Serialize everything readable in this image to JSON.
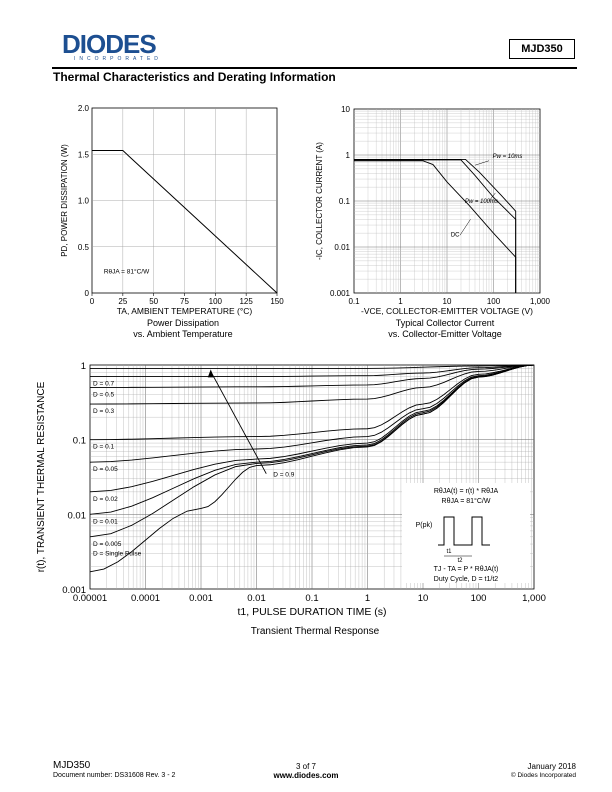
{
  "header": {
    "logo_text": "DIODES",
    "logo_subtext": "INCORPORATED",
    "part_number": "MJD350",
    "section_title": "Thermal Characteristics and Derating Information"
  },
  "colors": {
    "logo_blue": "#1d4f91",
    "ink": "#000000",
    "grid": "#888888"
  },
  "chart_data": [
    {
      "type": "line",
      "title": "Power Dissipation vs. Ambient Temperature",
      "caption_lines": [
        "Power Dissipation",
        "vs. Ambient Temperature"
      ],
      "xlabel": "TA, AMBIENT TEMPERATURE (°C)",
      "ylabel": "PD, POWER DISSIPATION (W)",
      "xlim": [
        0,
        150
      ],
      "ylim": [
        0,
        2.0
      ],
      "x_ticks": [
        0,
        25,
        50,
        75,
        100,
        125,
        150
      ],
      "x_tick_labels": [
        "0",
        "25",
        "50",
        "75",
        "100",
        "125",
        "150"
      ],
      "y_ticks": [
        0,
        0.5,
        1.0,
        1.5,
        2.0
      ],
      "y_tick_labels": [
        "0",
        "0.5",
        "1.0",
        "1.5",
        "2.0"
      ],
      "series": [
        {
          "name": "PD",
          "x": [
            0,
            25,
            150
          ],
          "y": [
            1.54,
            1.54,
            0
          ]
        }
      ],
      "annotation": "RθJA = 81°C/W"
    },
    {
      "type": "line",
      "title": "Typical Collector Current vs. Collector-Emitter Voltage",
      "caption_lines": [
        "Typical Collector Current",
        "vs. Collector-Emitter Voltage"
      ],
      "xlabel": "-VCE, COLLECTOR-EMITTER VOLTAGE (V)",
      "ylabel": "-IC, COLLECTOR CURRENT (A)",
      "xscale": "log",
      "yscale": "log",
      "xlim": [
        0.1,
        1000
      ],
      "ylim": [
        0.001,
        10
      ],
      "x_ticks": [
        0.1,
        1,
        10,
        100,
        1000
      ],
      "x_tick_labels": [
        "0.1",
        "1",
        "10",
        "100",
        "1,000"
      ],
      "y_ticks": [
        0.001,
        0.01,
        0.1,
        1,
        10
      ],
      "y_tick_labels": [
        "0.001",
        "0.01",
        "0.1",
        "1",
        "10"
      ],
      "series": [
        {
          "name": "DC",
          "x": [
            0.1,
            3,
            5,
            10,
            30,
            100,
            300,
            300
          ],
          "y": [
            0.75,
            0.75,
            0.62,
            0.26,
            0.08,
            0.02,
            0.006,
            0.001
          ]
        },
        {
          "name": "Pw = 100ms",
          "x": [
            0.1,
            20,
            40,
            100,
            300,
            300
          ],
          "y": [
            0.78,
            0.78,
            0.36,
            0.12,
            0.04,
            0.001
          ]
        },
        {
          "name": "Pw = 10ms",
          "x": [
            0.1,
            25,
            50,
            150,
            300,
            300
          ],
          "y": [
            0.8,
            0.8,
            0.42,
            0.13,
            0.06,
            0.001
          ]
        }
      ],
      "legend_labels": {
        "pw10": "Pw = 10ms",
        "pw100": "Pw = 100ms",
        "dc": "DC"
      }
    },
    {
      "type": "line",
      "title": "Transient Thermal Response",
      "caption_lines": [
        "Transient Thermal Response"
      ],
      "xlabel": "t1, PULSE DURATION TIME (s)",
      "ylabel": "r(t), TRANSIENT THERMAL RESISTANCE",
      "xscale": "log",
      "yscale": "log",
      "xlim": [
        1e-05,
        1000
      ],
      "ylim": [
        0.001,
        1
      ],
      "x_ticks": [
        1e-05,
        0.0001,
        0.001,
        0.01,
        0.1,
        1,
        10,
        100,
        1000
      ],
      "x_tick_labels": [
        "0.00001",
        "0.0001",
        "0.001",
        "0.01",
        "0.1",
        "1",
        "10",
        "100",
        "1,000"
      ],
      "y_ticks": [
        0.001,
        0.01,
        0.1,
        1
      ],
      "y_tick_labels": [
        "0.001",
        "0.01",
        "0.1",
        "1"
      ],
      "series": [
        {
          "name": "D = 0.7",
          "x": [
            1e-05,
            0.01,
            1,
            10,
            100,
            1000
          ],
          "y": [
            0.7,
            0.7,
            0.72,
            0.78,
            0.92,
            1.0
          ]
        },
        {
          "name": "D = 0.5",
          "x": [
            1e-05,
            0.01,
            1,
            10,
            100,
            1000
          ],
          "y": [
            0.5,
            0.51,
            0.54,
            0.66,
            0.88,
            1.0
          ]
        },
        {
          "name": "D = 0.3",
          "x": [
            1e-05,
            0.01,
            1,
            10,
            100,
            1000
          ],
          "y": [
            0.3,
            0.31,
            0.35,
            0.5,
            0.82,
            1.0
          ]
        },
        {
          "name": "D = 0.1",
          "x": [
            1e-05,
            0.01,
            1,
            10,
            100,
            1000
          ],
          "y": [
            0.1,
            0.11,
            0.14,
            0.3,
            0.75,
            1.0
          ]
        },
        {
          "name": "D = 0.05",
          "x": [
            1e-05,
            0.01,
            1,
            10,
            100,
            1000
          ],
          "y": [
            0.05,
            0.075,
            0.11,
            0.26,
            0.72,
            1.0
          ]
        },
        {
          "name": "D = 0.02",
          "x": [
            1e-05,
            0.01,
            1,
            10,
            100,
            1000
          ],
          "y": [
            0.02,
            0.055,
            0.09,
            0.24,
            0.7,
            1.0
          ]
        },
        {
          "name": "D = 0.01",
          "x": [
            1e-05,
            0.01,
            1,
            10,
            100,
            1000
          ],
          "y": [
            0.01,
            0.05,
            0.085,
            0.23,
            0.7,
            1.0
          ]
        },
        {
          "name": "D = 0.005",
          "x": [
            1e-05,
            0.01,
            1,
            10,
            100,
            1000
          ],
          "y": [
            0.005,
            0.048,
            0.082,
            0.22,
            0.69,
            1.0
          ]
        },
        {
          "name": "D = Single Pulse",
          "x": [
            1e-05,
            0.001,
            0.01,
            1,
            10,
            100,
            1000
          ],
          "y": [
            0.0017,
            0.012,
            0.045,
            0.08,
            0.22,
            0.69,
            1.0
          ]
        },
        {
          "name": "D = 0.9",
          "x": [
            1e-05,
            1,
            100,
            1000
          ],
          "y": [
            0.9,
            0.9,
            0.97,
            1.0
          ]
        }
      ],
      "curve_labels": [
        "D = 0.7",
        "D = 0.5",
        "D = 0.3",
        "D = 0.1",
        "D = 0.05",
        "D = 0.02",
        "D = 0.01",
        "D = 0.005",
        "D = Single Pulse",
        "D = 0.9"
      ],
      "inset": {
        "line1": "RθJA(t) = r(t) * RθJA",
        "line2": "RθJA = 81°C/W",
        "ppk": "P(pk)",
        "t1": "t1",
        "t2": "t2",
        "line3": "TJ - TA = P * RθJA(t)",
        "line4": "Duty Cycle, D = t1/t2"
      }
    }
  ],
  "footer": {
    "part": "MJD350",
    "doc_number": "Document number: DS31608 Rev. 3 - 2",
    "page": "3 of 7",
    "url": "www.diodes.com",
    "date": "January 2018",
    "copyright": "© Diodes Incorporated"
  }
}
